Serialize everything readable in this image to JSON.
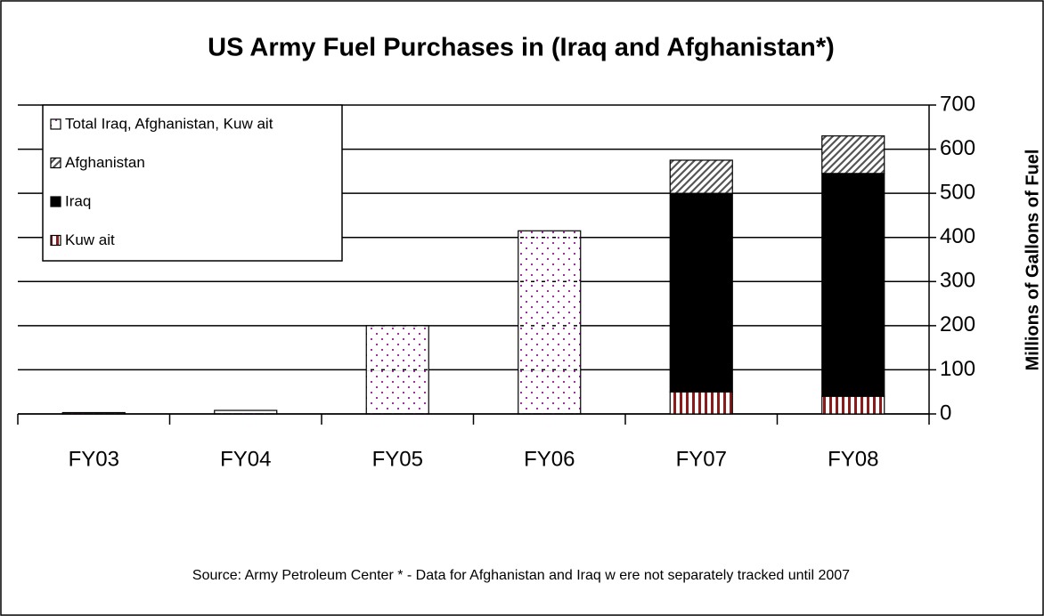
{
  "chart_data": {
    "type": "stacked-bar",
    "title": "US Army Fuel Purchases in (Iraq and Afghanistan*)",
    "y_label": "Millions of Gallons of Fuel",
    "note": "Source:  Army Petroleum Center     * - Data for Afghanistan and Iraq w ere not separately tracked until 2007",
    "categories": [
      "FY03",
      "FY04",
      "FY05",
      "FY06",
      "FY07",
      "FY08"
    ],
    "series": [
      {
        "name": "Kuw ait",
        "color": "#8b1a1a",
        "pattern": "vertical-stripes",
        "values": [
          null,
          null,
          null,
          null,
          50,
          40
        ]
      },
      {
        "name": "Iraq",
        "color": "#000000",
        "pattern": "solid",
        "values": [
          null,
          null,
          null,
          null,
          450,
          505
        ]
      },
      {
        "name": "Afghanistan",
        "color": "#555555",
        "pattern": "diagonal-hatch",
        "values": [
          null,
          null,
          null,
          null,
          75,
          85
        ]
      },
      {
        "name": "Total Iraq, Afghanistan, Kuw ait",
        "color": "#993399",
        "pattern": "dots",
        "values": [
          3,
          8,
          200,
          415,
          null,
          null
        ]
      }
    ],
    "ylim": [
      0,
      700
    ],
    "yticks": [
      0,
      100,
      200,
      300,
      400,
      500,
      600,
      700
    ],
    "y_axis_side": "right",
    "grid": true,
    "legend": "top-left"
  }
}
